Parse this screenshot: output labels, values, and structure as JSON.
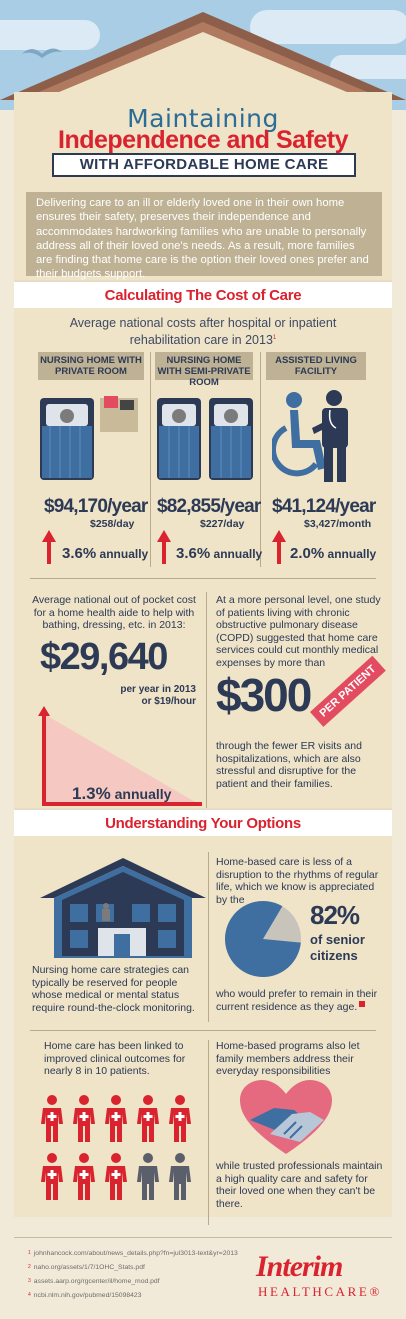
{
  "header": {
    "title_line1": "Maintaining",
    "title_line2": "Independence and Safety",
    "title_line3": "WITH AFFORDABLE HOME CARE"
  },
  "intro": "Delivering care to an ill or elderly loved one in their own home ensures their safety, preserves their independence and accommodates hardworking families who are unable to personally address all of their loved one's needs. As a result, more families are finding that home care is the option their loved ones prefer and their budgets support.",
  "cost_section": {
    "heading": "Calculating The Cost of Care",
    "subtitle": "Average national costs after hospital or inpatient rehabilitation care in 2013",
    "subtitle_note": "1",
    "columns": [
      {
        "header": "NURSING HOME WITH PRIVATE ROOM",
        "price": "$94,170/year",
        "per": "$258/day",
        "pct": "3.6%",
        "annual": "annually",
        "growth_pct": 3.6
      },
      {
        "header": "NURSING HOME WITH SEMI-PRIVATE ROOM",
        "price": "$82,855/year",
        "per": "$227/day",
        "pct": "3.6%",
        "annual": "annually",
        "growth_pct": 3.6
      },
      {
        "header": "ASSISTED LIVING FACILITY",
        "price": "$41,124/year",
        "per": "$3,427/month",
        "pct": "2.0%",
        "annual": "annually",
        "growth_pct": 2.0
      }
    ],
    "aide": {
      "text": "Average national out of pocket cost for a home health aide to help with bathing, dressing, etc. in 2013:",
      "amount": "$29,640",
      "per_line1": "per year in 2013",
      "per_line2": "or $19/hour",
      "pct": "1.3%",
      "annual": "annually",
      "growth_pct": 1.3
    },
    "copd": {
      "text": "At a more personal level, one study of patients living with chronic obstructive pulmonary disease (COPD) suggested that home care services could cut monthly medical expenses by more than",
      "amount": "$300",
      "ribbon": "PER PATIENT",
      "text_after": "through the fewer ER visits and hospitalizations, which are also stressful and disruptive for the patient and their families."
    }
  },
  "options_section": {
    "heading": "Understanding Your Options",
    "nursing_home_text": "Nursing home care strategies can typically be reserved for people whose medical or mental status require round-the-clock monitoring.",
    "home_based_text": "Home-based care is less of a disruption to the rhythms of regular life, which we know is appreciated by the",
    "pie": {
      "percent_value": 82,
      "percent_label": "82%",
      "label_line1": "of senior",
      "label_line2": "citizens"
    },
    "remain_text": "who would prefer to remain in their current residence as they age.",
    "outcomes_text": "Home care has been linked to improved clinical outcomes for nearly 8 in 10 patients.",
    "people": {
      "total": 10,
      "highlighted": 8
    },
    "family_text": "Home-based programs also let family members address their everyday responsibilities",
    "trusted_text": "while trusted professionals maintain a high quality care and safety for their loved one when they can't be there."
  },
  "footnotes": [
    {
      "mark": "1",
      "text": "johnhancock.com/about/news_details.php?fn=jul3013-text&yr=2013"
    },
    {
      "mark": "2",
      "text": "naho.org/assets/1/7/1OHC_Stats.pdf"
    },
    {
      "mark": "3",
      "text": "assets.aarp.org/rgcenter/il/home_mod.pdf"
    },
    {
      "mark": "4",
      "text": "ncbi.nlm.nih.gov/pubmed/15098423"
    }
  ],
  "logo": {
    "line1": "Interim",
    "line2": "HEALTHCARE",
    "mark": "®"
  },
  "colors": {
    "navy": "#2c3a55",
    "red": "#d9232f",
    "blue": "#2b6d96",
    "tan": "#bfb294",
    "background": "#efe3c8",
    "pink": "#e34b61",
    "sky": "#a9cde4"
  }
}
